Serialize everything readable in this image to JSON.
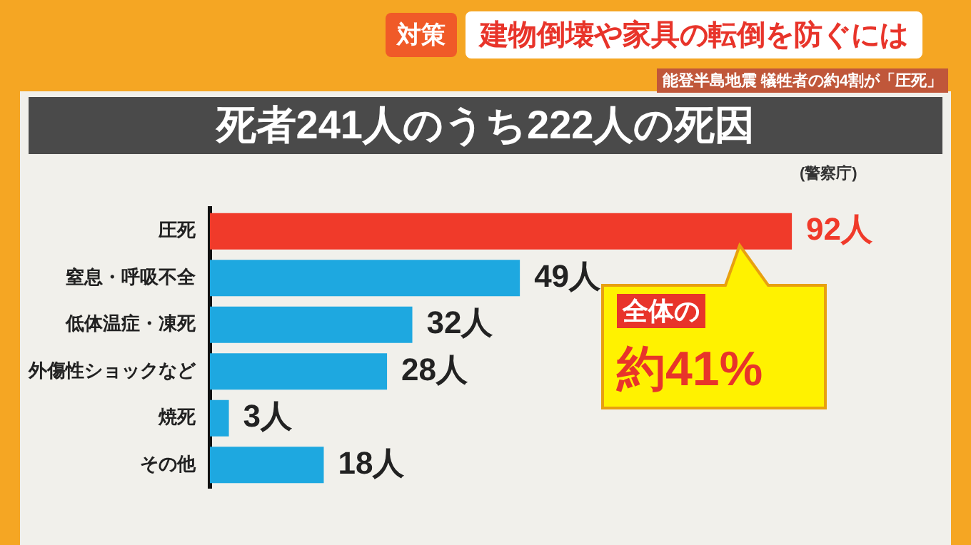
{
  "chart_data": {
    "type": "bar",
    "orientation": "horizontal",
    "title": "死者241人のうち222人の死因",
    "categories": [
      "圧死",
      "窒息・呼吸不全",
      "低体温症・凍死",
      "外傷性ショックなど",
      "焼死",
      "その他"
    ],
    "values": [
      92,
      49,
      32,
      28,
      3,
      18
    ],
    "colors": [
      "#f03a2a",
      "#1ea8e0",
      "#1ea8e0",
      "#1ea8e0",
      "#1ea8e0",
      "#1ea8e0"
    ],
    "value_labels": [
      "92人",
      "49人",
      "32人",
      "28人",
      "3人",
      "18人"
    ],
    "grid": false,
    "legend": false,
    "annotations": [
      "対策",
      "建物倒壊や家具の転倒を防ぐには",
      "能登半島地震 犠牲者の約4割が「圧死」",
      "(警察庁)",
      "全体の",
      "約41%"
    ]
  }
}
